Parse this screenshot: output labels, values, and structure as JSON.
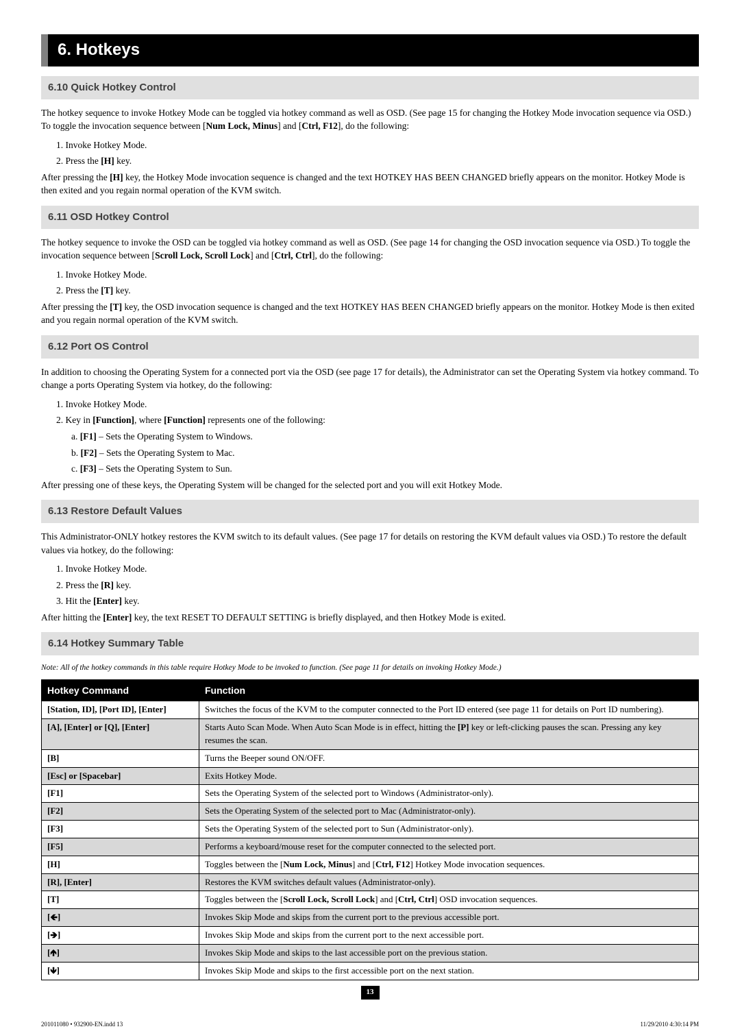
{
  "chapter": "6. Hotkeys",
  "sections": {
    "s610": {
      "title": "6.10 Quick Hotkey Control",
      "p1a": "The hotkey sequence to invoke Hotkey Mode can be toggled via hotkey command as well as OSD. (See page 15 for changing the Hotkey Mode invocation sequence via OSD.) To toggle the invocation sequence between [",
      "p1b": "Num Lock, Minus",
      "p1c": "] and [",
      "p1d": "Ctrl, F12",
      "p1e": "], do the following:",
      "li1": "1. Invoke Hotkey Mode.",
      "li2a": "2. Press the ",
      "li2b": "[H]",
      "li2c": " key.",
      "p2a": "After pressing the ",
      "p2b": "[H]",
      "p2c": " key, the Hotkey Mode invocation sequence is changed and the text HOTKEY HAS BEEN CHANGED briefly appears on the monitor. Hotkey Mode is then exited and you regain normal operation of the KVM switch."
    },
    "s611": {
      "title": "6.11 OSD Hotkey Control",
      "p1a": "The hotkey sequence to invoke the OSD can be toggled via hotkey command as well as OSD. (See page 14 for changing the OSD invocation sequence via OSD.) To toggle the invocation sequence between [",
      "p1b": "Scroll Lock, Scroll Lock",
      "p1c": "] and [",
      "p1d": "Ctrl, Ctrl",
      "p1e": "], do the following:",
      "li1": "1. Invoke Hotkey Mode.",
      "li2a": "2. Press the ",
      "li2b": "[T]",
      "li2c": " key.",
      "p2a": "After pressing the ",
      "p2b": "[T]",
      "p2c": " key, the OSD invocation sequence is changed and the text HOTKEY HAS BEEN CHANGED briefly appears on the monitor. Hotkey Mode is then exited and you regain normal operation of the KVM switch."
    },
    "s612": {
      "title": "6.12 Port OS Control",
      "p1": "In addition to choosing the Operating System for a connected port via the OSD (see page 17 for details), the Administrator can set the Operating System via hotkey command. To change a ports Operating System via hotkey, do the following:",
      "li1": "1. Invoke Hotkey Mode.",
      "li2a": "2. Key in ",
      "li2b": "[Function]",
      "li2c": ", where ",
      "li2d": "[Function]",
      "li2e": " represents one of the following:",
      "sa1": "a. ",
      "sa2": "[F1]",
      "sa3": " – Sets the Operating System to Windows.",
      "sb1": "b. ",
      "sb2": "[F2]",
      "sb3": " – Sets the Operating System to Mac.",
      "sc1": "c. ",
      "sc2": "[F3]",
      "sc3": " – Sets the Operating System to Sun.",
      "p2": "After pressing one of these keys, the Operating System will be changed for the selected port and you will exit Hotkey Mode."
    },
    "s613": {
      "title": "6.13 Restore Default Values",
      "p1": "This Administrator-ONLY hotkey restores the KVM switch to its default values. (See page 17 for details on restoring the KVM default values via OSD.) To restore the default values via hotkey, do the following:",
      "li1": "1. Invoke Hotkey Mode.",
      "li2a": "2. Press the ",
      "li2b": "[R]",
      "li2c": " key.",
      "li3a": "3. Hit the ",
      "li3b": "[Enter]",
      "li3c": " key.",
      "p2a": "After hitting the ",
      "p2b": "[Enter]",
      "p2c": " key, the text RESET TO DEFAULT SETTING is briefly displayed, and then Hotkey Mode is exited."
    },
    "s614": {
      "title": "6.14 Hotkey Summary Table",
      "note": "Note: All of the hotkey commands in this table require Hotkey Mode to be invoked to function. (See page 11 for details on invoking Hotkey Mode.)",
      "th1": "Hotkey Command",
      "th2": "Function"
    }
  },
  "table": [
    {
      "cmd": "[Station, ID], [Port ID], [Enter]",
      "func": "Switches the focus of the KVM to the computer connected to the Port ID entered (see page 11 for details on Port ID numbering)."
    },
    {
      "cmd": "[A], [Enter] or [Q], [Enter]",
      "funcA": "Starts Auto Scan Mode. When Auto Scan Mode is in effect, hitting the ",
      "funcB": "[P]",
      "funcC": " key or left-clicking pauses the scan. Pressing any key resumes the scan."
    },
    {
      "cmd": "[B]",
      "func": "Turns the Beeper sound ON/OFF."
    },
    {
      "cmd": "[Esc] or [Spacebar]",
      "func": "Exits Hotkey Mode."
    },
    {
      "cmd": "[F1]",
      "func": "Sets the Operating System of the selected port to Windows (Administrator-only)."
    },
    {
      "cmd": "[F2]",
      "func": "Sets the Operating System of the selected port to Mac (Administrator-only)."
    },
    {
      "cmd": "[F3]",
      "func": "Sets the Operating System of the selected port to Sun (Administrator-only)."
    },
    {
      "cmd": "[F5]",
      "func": "Performs a keyboard/mouse reset for the computer connected to the selected port."
    },
    {
      "cmd": "[H]",
      "funcA": "Toggles between the [",
      "funcB": "Num Lock, Minus",
      "funcC": "] and [",
      "funcD": "Ctrl, F12",
      "funcE": "] Hotkey Mode invocation sequences."
    },
    {
      "cmd": "[R], [Enter]",
      "func": "Restores the KVM switches default values (Administrator-only)."
    },
    {
      "cmd": "[T]",
      "funcA": "Toggles between the [",
      "funcB": "Scroll Lock, Scroll Lock",
      "funcC": "] and [",
      "funcD": "Ctrl, Ctrl",
      "funcE": "] OSD invocation sequences."
    },
    {
      "cmd": "[🡸]",
      "func": "Invokes Skip Mode and skips from the current port to the previous accessible port."
    },
    {
      "cmd": "[🡺]",
      "func": "Invokes Skip Mode and skips from the current port to the next accessible port."
    },
    {
      "cmd": "[🡹]",
      "func": "Invokes Skip Mode and skips to the last accessible port on the previous station."
    },
    {
      "cmd": "[🡻]",
      "func": "Invokes Skip Mode and skips to the first accessible port on the next station."
    }
  ],
  "pageNum": "13",
  "footerLeft": "201011080 • 932900-EN.indd   13",
  "footerRight": "11/29/2010   4:30:14 PM"
}
